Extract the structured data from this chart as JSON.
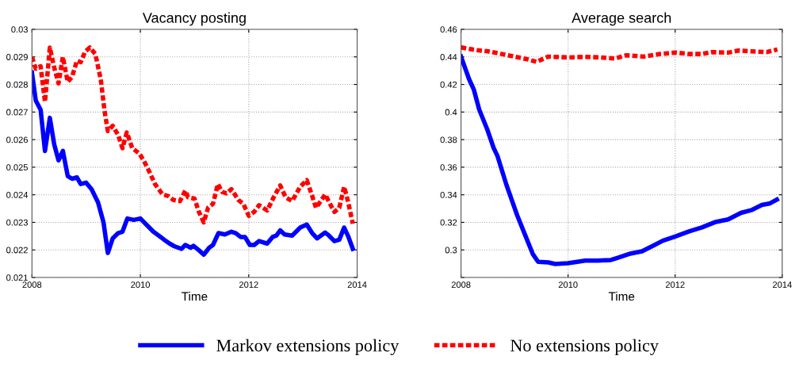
{
  "chart_data": [
    {
      "type": "line",
      "title": "Vacancy posting",
      "xlabel": "Time",
      "xlim": [
        2008,
        2014
      ],
      "xticks": [
        2008,
        2010,
        2012,
        2014
      ],
      "ylim": [
        0.021,
        0.03
      ],
      "yticks": [
        0.021,
        0.022,
        0.023,
        0.024,
        0.025,
        0.026,
        0.027,
        0.028,
        0.029,
        0.03
      ],
      "grid": true,
      "legend": "bottom",
      "series": [
        {
          "name": "Markov extensions policy",
          "color": "#0000ff",
          "line_style": "solid",
          "x": [
            2008.0,
            2008.07,
            2008.16,
            2008.24,
            2008.33,
            2008.41,
            2008.49,
            2008.57,
            2008.66,
            2008.74,
            2008.83,
            2008.9,
            2009.0,
            2009.1,
            2009.22,
            2009.32,
            2009.4,
            2009.49,
            2009.59,
            2009.67,
            2009.76,
            2009.88,
            2010.0,
            2010.12,
            2010.24,
            2010.34,
            2010.44,
            2010.54,
            2010.63,
            2010.76,
            2010.83,
            2010.93,
            2010.98,
            2011.08,
            2011.17,
            2011.27,
            2011.34,
            2011.44,
            2011.56,
            2011.68,
            2011.76,
            2011.85,
            2011.93,
            2012.02,
            2012.1,
            2012.19,
            2012.34,
            2012.44,
            2012.51,
            2012.58,
            2012.66,
            2012.8,
            2012.95,
            2013.07,
            2013.17,
            2013.26,
            2013.41,
            2013.48,
            2013.58,
            2013.67,
            2013.76,
            2013.84,
            2013.92
          ],
          "values": [
            0.02843,
            0.02742,
            0.02708,
            0.02559,
            0.02679,
            0.02583,
            0.02525,
            0.02559,
            0.02468,
            0.02458,
            0.02463,
            0.02439,
            0.02444,
            0.0242,
            0.02372,
            0.023,
            0.02189,
            0.02242,
            0.02261,
            0.02266,
            0.02314,
            0.02309,
            0.02314,
            0.0229,
            0.02266,
            0.02252,
            0.02237,
            0.02223,
            0.02213,
            0.02204,
            0.02218,
            0.02208,
            0.02215,
            0.02199,
            0.02183,
            0.02208,
            0.02218,
            0.02261,
            0.02256,
            0.02266,
            0.02261,
            0.02247,
            0.02247,
            0.02218,
            0.02218,
            0.02232,
            0.02223,
            0.02247,
            0.02252,
            0.02271,
            0.02256,
            0.02252,
            0.02281,
            0.02292,
            0.02261,
            0.02242,
            0.02263,
            0.02252,
            0.02232,
            0.02237,
            0.02281,
            0.02247,
            0.02204
          ]
        },
        {
          "name": "No extensions policy",
          "color": "#ff0000",
          "line_style": "dashed",
          "x": [
            2008.0,
            2008.07,
            2008.16,
            2008.24,
            2008.33,
            2008.41,
            2008.49,
            2008.57,
            2008.66,
            2008.74,
            2008.83,
            2008.9,
            2008.98,
            2009.07,
            2009.17,
            2009.27,
            2009.34,
            2009.4,
            2009.49,
            2009.59,
            2009.67,
            2009.75,
            2009.85,
            2009.98,
            2010.07,
            2010.17,
            2010.27,
            2010.41,
            2010.51,
            2010.61,
            2010.73,
            2010.83,
            2010.88,
            2011.0,
            2011.08,
            2011.17,
            2011.25,
            2011.34,
            2011.43,
            2011.51,
            2011.59,
            2011.68,
            2011.81,
            2011.9,
            2012.0,
            2012.1,
            2012.19,
            2012.34,
            2012.46,
            2012.58,
            2012.68,
            2012.8,
            2012.95,
            2013.07,
            2013.17,
            2013.24,
            2013.31,
            2013.41,
            2013.5,
            2013.58,
            2013.67,
            2013.76,
            2013.83,
            2013.92
          ],
          "values": [
            0.029,
            0.02857,
            0.02866,
            0.02737,
            0.02934,
            0.02862,
            0.02804,
            0.029,
            0.02809,
            0.02828,
            0.02886,
            0.02881,
            0.02919,
            0.02934,
            0.0291,
            0.02818,
            0.02703,
            0.02631,
            0.0265,
            0.02617,
            0.02569,
            0.02626,
            0.02569,
            0.0255,
            0.02521,
            0.02482,
            0.02439,
            0.02401,
            0.02396,
            0.02381,
            0.02377,
            0.02415,
            0.02391,
            0.02386,
            0.02338,
            0.023,
            0.02353,
            0.02367,
            0.02439,
            0.0241,
            0.02405,
            0.0242,
            0.02381,
            0.02367,
            0.02324,
            0.02338,
            0.02362,
            0.02343,
            0.02391,
            0.02434,
            0.02391,
            0.02377,
            0.02429,
            0.02453,
            0.02396,
            0.02353,
            0.02372,
            0.02401,
            0.02367,
            0.02338,
            0.02353,
            0.02429,
            0.02377,
            0.02295
          ]
        }
      ]
    },
    {
      "type": "line",
      "title": "Average search",
      "xlabel": "Time",
      "xlim": [
        2008,
        2014
      ],
      "xticks": [
        2008,
        2010,
        2012,
        2014
      ],
      "ylim": [
        0.28,
        0.46
      ],
      "yticks": [
        {
          "value": 0.28,
          "label": null
        },
        0.3,
        0.32,
        0.34,
        0.36,
        0.38,
        0.4,
        0.42,
        0.44,
        0.46
      ],
      "grid": true,
      "legend": "bottom",
      "series": [
        {
          "name": "Markov extensions policy",
          "color": "#0000ff",
          "line_style": "solid",
          "x": [
            2008.0,
            2008.15,
            2008.24,
            2008.34,
            2008.49,
            2008.61,
            2008.68,
            2008.85,
            2009.05,
            2009.2,
            2009.34,
            2009.44,
            2009.63,
            2009.76,
            2010.0,
            2010.32,
            2010.56,
            2010.8,
            2010.92,
            2011.14,
            2011.38,
            2011.58,
            2011.77,
            2011.99,
            2012.26,
            2012.5,
            2012.74,
            2012.99,
            2013.23,
            2013.42,
            2013.62,
            2013.76,
            2013.9
          ],
          "values": [
            0.4402,
            0.4239,
            0.4162,
            0.4018,
            0.3874,
            0.3739,
            0.3682,
            0.347,
            0.325,
            0.3106,
            0.2971,
            0.2914,
            0.291,
            0.2898,
            0.2904,
            0.2923,
            0.2923,
            0.2927,
            0.2942,
            0.2971,
            0.299,
            0.3029,
            0.3067,
            0.3096,
            0.3134,
            0.3163,
            0.3201,
            0.3221,
            0.3269,
            0.3288,
            0.3326,
            0.3336,
            0.3365
          ]
        },
        {
          "name": "No extensions policy",
          "color": "#ff0000",
          "line_style": "dashed",
          "x": [
            2008.0,
            2008.27,
            2008.51,
            2008.76,
            2009.0,
            2009.24,
            2009.41,
            2009.63,
            2010.0,
            2010.32,
            2010.61,
            2010.87,
            2011.09,
            2011.41,
            2011.72,
            2012.01,
            2012.26,
            2012.5,
            2012.69,
            2012.99,
            2013.18,
            2013.42,
            2013.71,
            2013.91
          ],
          "values": [
            0.4469,
            0.445,
            0.444,
            0.4421,
            0.4402,
            0.4383,
            0.4364,
            0.4402,
            0.4396,
            0.44,
            0.4396,
            0.4388,
            0.4412,
            0.4402,
            0.4421,
            0.4431,
            0.4421,
            0.4421,
            0.4435,
            0.4431,
            0.4446,
            0.444,
            0.4435,
            0.4454
          ]
        }
      ]
    }
  ]
}
